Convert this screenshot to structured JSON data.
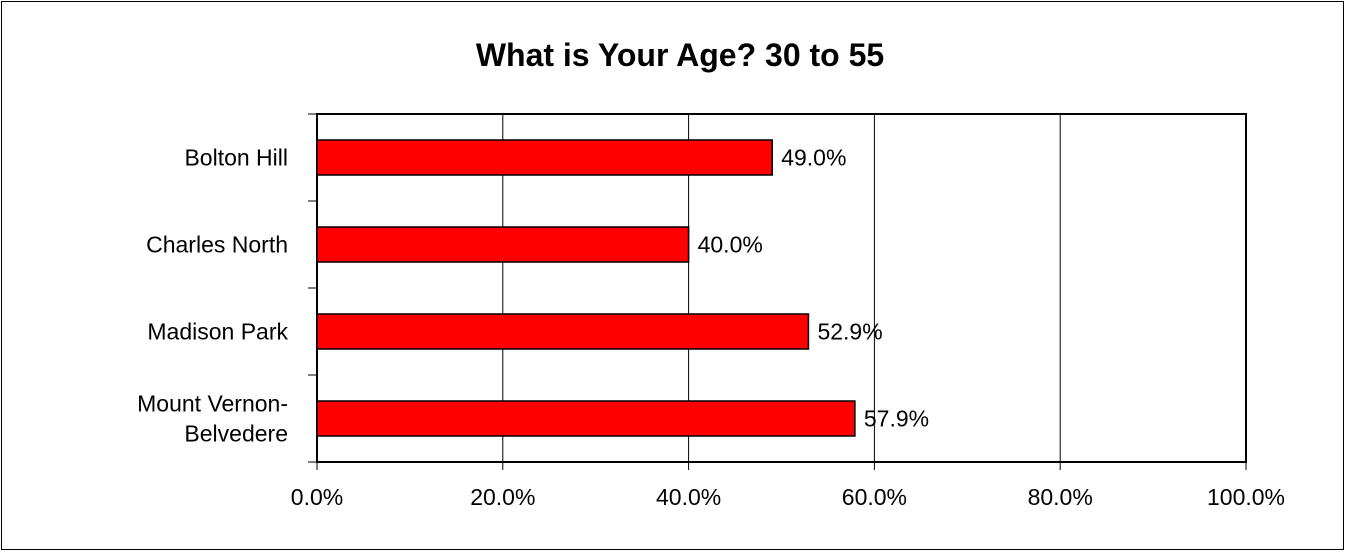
{
  "chart_data": {
    "type": "bar",
    "orientation": "horizontal",
    "title": "What is Your Age? 30 to 55",
    "xlabel": "",
    "ylabel": "",
    "categories": [
      "Bolton Hill",
      "Charles North",
      "Madison Park",
      "Mount Vernon-Belvedere"
    ],
    "category_label_lines": [
      [
        "Bolton Hill"
      ],
      [
        "Charles North"
      ],
      [
        "Madison Park"
      ],
      [
        "Mount Vernon-",
        "Belvedere"
      ]
    ],
    "values": [
      49.0,
      40.0,
      52.9,
      57.9
    ],
    "data_labels": [
      "49.0%",
      "40.0%",
      "52.9%",
      "57.9%"
    ],
    "xlim": [
      0,
      100
    ],
    "xticks": [
      0,
      20,
      40,
      60,
      80,
      100
    ],
    "xtick_labels": [
      "0.0%",
      "20.0%",
      "40.0%",
      "60.0%",
      "80.0%",
      "100.0%"
    ],
    "grid": "vertical",
    "legend": "none",
    "bar_color": "#ff0000"
  }
}
